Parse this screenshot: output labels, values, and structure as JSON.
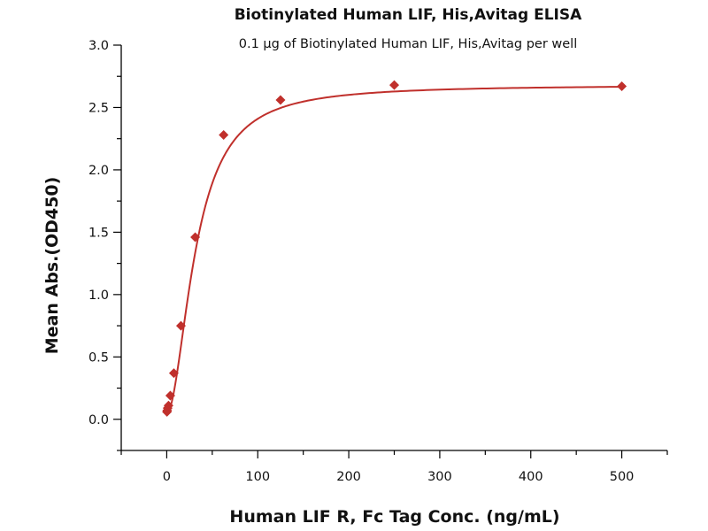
{
  "chart_data": {
    "type": "scatter",
    "title": "Biotinylated Human LIF, His,Avitag ELISA",
    "subtitle": "0.1 μg of Biotinylated Human LIF, His,Avitag per well",
    "xlabel": "Human LIF R, Fc Tag Conc. (ng/mL)",
    "ylabel": "Mean Abs.(OD450)",
    "xlim": [
      -50,
      550
    ],
    "ylim": [
      -0.25,
      3.0
    ],
    "xticks": [
      0,
      100,
      200,
      300,
      400,
      500
    ],
    "xtick_labels": [
      "0",
      "100",
      "200",
      "300",
      "400",
      "500"
    ],
    "yticks": [
      0.0,
      0.5,
      1.0,
      1.5,
      2.0,
      2.5,
      3.0
    ],
    "ytick_labels": [
      "0.0",
      "0.5",
      "1.0",
      "1.5",
      "2.0",
      "2.5",
      "3.0"
    ],
    "grid": false,
    "color": "#c0302c",
    "points": [
      {
        "x": 0.24,
        "y": 0.06
      },
      {
        "x": 0.49,
        "y": 0.07
      },
      {
        "x": 0.98,
        "y": 0.09
      },
      {
        "x": 1.95,
        "y": 0.11
      },
      {
        "x": 3.9,
        "y": 0.19
      },
      {
        "x": 7.8,
        "y": 0.37
      },
      {
        "x": 15.6,
        "y": 0.75
      },
      {
        "x": 31.25,
        "y": 1.46
      },
      {
        "x": 62.5,
        "y": 2.28
      },
      {
        "x": 125,
        "y": 2.56
      },
      {
        "x": 250,
        "y": 2.68
      },
      {
        "x": 500,
        "y": 2.67
      }
    ],
    "fit": {
      "bottom": 0.05,
      "top": 2.68,
      "ec50": 32,
      "hill": 1.9
    }
  }
}
